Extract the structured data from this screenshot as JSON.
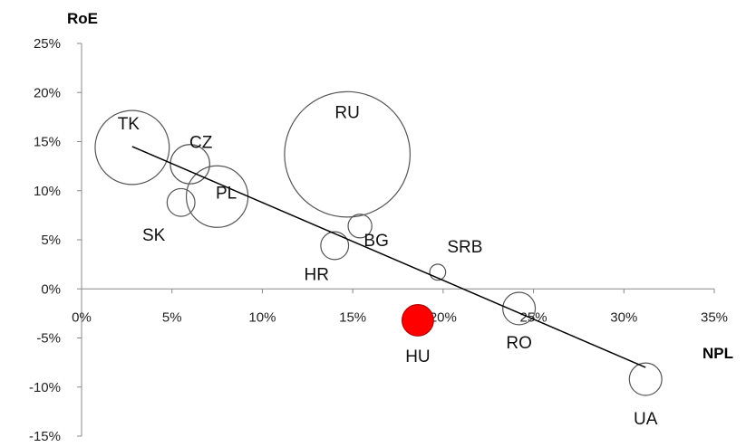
{
  "chart_data": {
    "type": "scatter",
    "subtype": "bubble",
    "xlabel": "NPL",
    "ylabel": "RoE",
    "xlim": [
      0,
      35
    ],
    "ylim": [
      -15,
      25
    ],
    "x_ticks": [
      0,
      5,
      10,
      15,
      20,
      25,
      30,
      35
    ],
    "y_ticks": [
      -15,
      -10,
      -5,
      0,
      5,
      10,
      15,
      20,
      25
    ],
    "tick_format": "percent",
    "grid": false,
    "bubble_stroke": "#555555",
    "highlight_color": "#ff0000",
    "trendline": {
      "x": [
        2.8,
        31.2
      ],
      "y": [
        14.5,
        -8.0
      ],
      "color": "#000000"
    },
    "points": [
      {
        "label": "TK",
        "x": 2.8,
        "y": 14.4,
        "size": 3.9
      },
      {
        "label": "CZ",
        "x": 6.0,
        "y": 12.7,
        "size": 1.1
      },
      {
        "label": "PL",
        "x": 7.5,
        "y": 9.4,
        "size": 2.7
      },
      {
        "label": "SK",
        "x": 5.5,
        "y": 8.8,
        "size": 0.55
      },
      {
        "label": "RU",
        "x": 14.7,
        "y": 13.7,
        "size": 11.2
      },
      {
        "label": "BG",
        "x": 15.4,
        "y": 6.4,
        "size": 0.4
      },
      {
        "label": "HR",
        "x": 14.0,
        "y": 4.4,
        "size": 0.55
      },
      {
        "label": "SRB",
        "x": 19.7,
        "y": 1.7,
        "size": 0.18
      },
      {
        "label": "HU",
        "x": 18.6,
        "y": -3.2,
        "size": 0.7,
        "highlight": true
      },
      {
        "label": "RO",
        "x": 24.2,
        "y": -2.0,
        "size": 0.75
      },
      {
        "label": "UA",
        "x": 31.2,
        "y": -9.2,
        "size": 0.75
      }
    ]
  }
}
